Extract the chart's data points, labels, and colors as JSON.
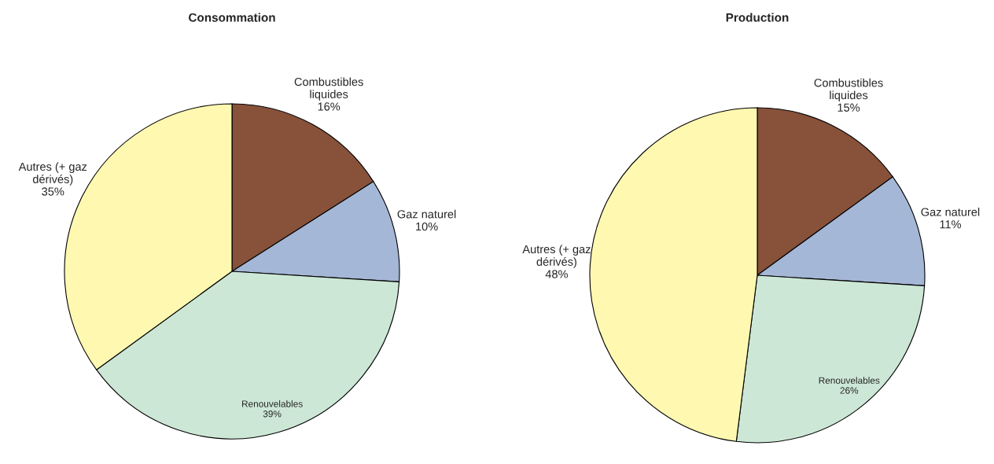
{
  "chart_data": [
    {
      "type": "pie",
      "title": "Consommation",
      "categories": [
        "Combustibles\nliquides",
        "Gaz naturel",
        "Renouvelables",
        "Autres (+ gaz\ndérivés)"
      ],
      "values": [
        16,
        10,
        39,
        35
      ],
      "colors": [
        "#87513a",
        "#a5b7d6",
        "#cde7d6",
        "#fff8b0"
      ],
      "value_labels": [
        "16%",
        "10%",
        "39%",
        "35%"
      ]
    },
    {
      "type": "pie",
      "title": "Production",
      "categories": [
        "Combustibles\nliquides",
        "Gaz naturel",
        "Renouvelables",
        "Autres (+ gaz\ndérivés)"
      ],
      "values": [
        15,
        11,
        26,
        48
      ],
      "colors": [
        "#87513a",
        "#a5b7d6",
        "#cde7d6",
        "#fff8b0"
      ],
      "value_labels": [
        "15%",
        "11%",
        "26%",
        "48%"
      ]
    }
  ]
}
